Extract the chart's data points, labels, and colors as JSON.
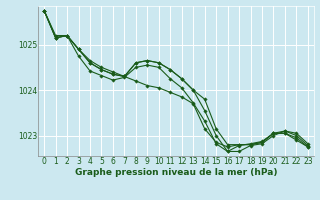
{
  "title": "Graphe pression niveau de la mer (hPa)",
  "bg_color": "#cce8f0",
  "grid_color": "#ffffff",
  "line_color": "#1a5c1a",
  "marker_color": "#1a5c1a",
  "xlim": [
    -0.5,
    23.5
  ],
  "ylim": [
    1022.55,
    1025.85
  ],
  "yticks": [
    1023,
    1024,
    1025
  ],
  "xticks": [
    0,
    1,
    2,
    3,
    4,
    5,
    6,
    7,
    8,
    9,
    10,
    11,
    12,
    13,
    14,
    15,
    16,
    17,
    18,
    19,
    20,
    21,
    22,
    23
  ],
  "series": [
    [
      1025.75,
      1025.2,
      1025.2,
      1024.9,
      1024.65,
      1024.5,
      1024.4,
      1024.3,
      1024.2,
      1024.1,
      1024.05,
      1023.95,
      1023.85,
      1023.7,
      1023.15,
      1022.85,
      1022.75,
      1022.8,
      1022.8,
      1022.85,
      1023.05,
      1023.05,
      1022.9,
      1022.75
    ],
    [
      1025.75,
      1025.15,
      1025.2,
      1024.9,
      1024.6,
      1024.45,
      1024.35,
      1024.3,
      1024.6,
      1024.65,
      1024.6,
      1024.45,
      1024.25,
      1024.0,
      1023.8,
      1023.15,
      1022.8,
      1022.8,
      1022.8,
      1022.85,
      1023.05,
      1023.05,
      1022.95,
      1022.75
    ],
    [
      1025.75,
      1025.15,
      1025.2,
      1024.9,
      1024.6,
      1024.45,
      1024.35,
      1024.3,
      1024.6,
      1024.65,
      1024.6,
      1024.45,
      1024.25,
      1024.0,
      1023.55,
      1023.0,
      1022.65,
      1022.78,
      1022.82,
      1022.87,
      1023.05,
      1023.1,
      1023.05,
      1022.82
    ],
    [
      1025.75,
      1025.15,
      1025.2,
      1024.75,
      1024.42,
      1024.32,
      1024.22,
      1024.28,
      1024.5,
      1024.55,
      1024.5,
      1024.25,
      1024.05,
      1023.72,
      1023.32,
      1022.82,
      1022.65,
      1022.65,
      1022.78,
      1022.82,
      1023.0,
      1023.1,
      1023.0,
      1022.78
    ]
  ],
  "tick_fontsize": 5.5,
  "title_fontsize": 6.5
}
